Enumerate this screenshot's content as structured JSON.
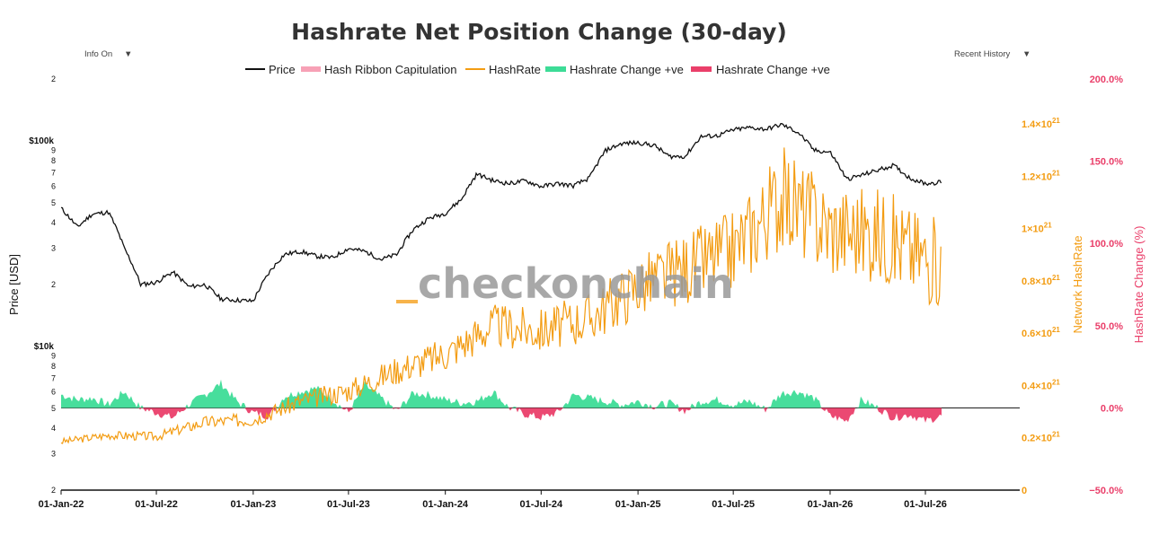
{
  "chart_data": {
    "type": "line",
    "title": "Hashrate Net Position Change (30-day)",
    "controls": {
      "left": "Info On",
      "right": "Recent History"
    },
    "watermark": "checkonchain",
    "legend": [
      "Price",
      "Hash Ribbon Capitulation",
      "HashRate",
      "Hashrate Change +ve",
      "Hashrate Change +ve"
    ],
    "colors": {
      "price": "#111111",
      "capitulation": "#f7a1b6",
      "hashrate": "#f39c12",
      "positive": "#3ddc97",
      "negative": "#ea3f6a"
    },
    "x_ticks": [
      "01-Jan-22",
      "01-Jul-22",
      "01-Jan-23",
      "01-Jul-23",
      "01-Jan-24",
      "01-Jul-24",
      "01-Jan-25",
      "01-Jul-25",
      "01-Jan-26",
      "01-Jul-26"
    ],
    "y_left": {
      "label": "Price [USD]",
      "scale": "log",
      "range": [
        2000,
        200000
      ],
      "ticks": [
        {
          "v": 2000,
          "t": "2"
        },
        {
          "v": 3000,
          "t": "3"
        },
        {
          "v": 4000,
          "t": "4"
        },
        {
          "v": 5000,
          "t": "5"
        },
        {
          "v": 6000,
          "t": "6"
        },
        {
          "v": 7000,
          "t": "7"
        },
        {
          "v": 8000,
          "t": "8"
        },
        {
          "v": 9000,
          "t": "9"
        },
        {
          "v": 10000,
          "t": "$10k"
        },
        {
          "v": 20000,
          "t": "2"
        },
        {
          "v": 30000,
          "t": "3"
        },
        {
          "v": 40000,
          "t": "4"
        },
        {
          "v": 50000,
          "t": "5"
        },
        {
          "v": 60000,
          "t": "6"
        },
        {
          "v": 70000,
          "t": "7"
        },
        {
          "v": 80000,
          "t": "8"
        },
        {
          "v": 90000,
          "t": "9"
        },
        {
          "v": 100000,
          "t": "$100k"
        },
        {
          "v": 200000,
          "t": "2"
        }
      ]
    },
    "y_hashrate": {
      "label": "Network HashRate",
      "range": [
        0,
        1.4e+21
      ],
      "ticks": [
        {
          "v": 0,
          "base": "0",
          "exp": ""
        },
        {
          "v": 2e+20,
          "base": "0.2×10",
          "exp": "21"
        },
        {
          "v": 4e+20,
          "base": "0.4×10",
          "exp": "21"
        },
        {
          "v": 6e+20,
          "base": "0.6×10",
          "exp": "21"
        },
        {
          "v": 8e+20,
          "base": "0.8×10",
          "exp": "21"
        },
        {
          "v": 1e+21,
          "base": "1×10",
          "exp": "21"
        },
        {
          "v": 1.2e+21,
          "base": "1.2×10",
          "exp": "21"
        },
        {
          "v": 1.4e+21,
          "base": "1.4×10",
          "exp": "21"
        }
      ]
    },
    "y_change": {
      "label": "HashRate Change (%)",
      "range": [
        -50,
        200
      ],
      "ticks": [
        "−50.0%",
        "0.0%",
        "50.0%",
        "100.0%",
        "150.0%",
        "200.0%"
      ],
      "tick_values": [
        -50,
        0,
        50,
        100,
        150,
        200
      ]
    },
    "price_series": {
      "x": [
        "2022-01-01",
        "2022-02-01",
        "2022-03-01",
        "2022-04-01",
        "2022-05-01",
        "2022-06-01",
        "2022-07-01",
        "2022-08-01",
        "2022-09-01",
        "2022-10-01",
        "2022-11-01",
        "2022-12-01",
        "2023-01-01",
        "2023-02-01",
        "2023-03-01",
        "2023-04-01",
        "2023-05-01",
        "2023-06-01",
        "2023-07-01",
        "2023-08-01",
        "2023-09-01",
        "2023-10-01",
        "2023-11-01",
        "2023-12-01",
        "2024-01-01",
        "2024-02-01",
        "2024-03-01",
        "2024-04-01",
        "2024-05-01",
        "2024-06-01",
        "2024-07-01",
        "2024-08-01",
        "2024-09-01",
        "2024-10-01",
        "2024-11-01",
        "2024-12-01",
        "2025-01-01",
        "2025-02-01",
        "2025-03-01",
        "2025-04-01",
        "2025-05-01",
        "2025-06-01",
        "2025-07-01",
        "2025-08-01",
        "2025-09-01",
        "2025-10-01",
        "2025-11-01",
        "2025-12-01",
        "2026-01-01",
        "2026-02-01",
        "2026-03-01",
        "2026-04-01",
        "2026-05-01",
        "2026-06-01",
        "2026-07-01",
        "2026-08-01"
      ],
      "y": [
        47000,
        38000,
        44000,
        45000,
        30000,
        20000,
        20500,
        23000,
        19500,
        20000,
        17000,
        16800,
        16600,
        23000,
        28000,
        29000,
        27500,
        27000,
        30000,
        29000,
        26500,
        28000,
        37000,
        42000,
        44500,
        52000,
        69000,
        64000,
        62000,
        64000,
        60000,
        62000,
        60500,
        66000,
        90000,
        97000,
        98000,
        95000,
        84000,
        84000,
        105000,
        106000,
        113000,
        116000,
        114000,
        120000,
        110000,
        90000,
        88000,
        65000,
        68000,
        72000,
        76000,
        66000,
        62000,
        63000
      ]
    },
    "hashrate_series": {
      "x": [
        "2022-01-01",
        "2022-04-01",
        "2022-07-01",
        "2022-10-01",
        "2023-01-01",
        "2023-04-01",
        "2023-07-01",
        "2023-10-01",
        "2024-01-01",
        "2024-04-01",
        "2024-07-01",
        "2024-10-01",
        "2025-01-01",
        "2025-04-01",
        "2025-07-01",
        "2025-10-01",
        "2026-01-01",
        "2026-04-01",
        "2026-08-01"
      ],
      "y": [
        1.85e+20,
        2.1e+20,
        2.05e+20,
        2.6e+20,
        2.7e+20,
        3.4e+20,
        3.8e+20,
        4.6e+20,
        5.2e+20,
        6.3e+20,
        6.1e+20,
        6.6e+20,
        7.8e+20,
        8.5e+20,
        9.2e+20,
        1.12e+21,
        1e+21,
        9.8e+20,
        8.6e+20
      ]
    },
    "change_series": {
      "x": [
        "2022-01-01",
        "2022-02-01",
        "2022-03-01",
        "2022-04-01",
        "2022-05-01",
        "2022-06-01",
        "2022-07-01",
        "2022-08-01",
        "2022-09-01",
        "2022-10-01",
        "2022-11-01",
        "2022-12-01",
        "2023-01-01",
        "2023-02-01",
        "2023-03-01",
        "2023-04-01",
        "2023-05-01",
        "2023-06-01",
        "2023-07-01",
        "2023-08-01",
        "2023-09-01",
        "2023-10-01",
        "2023-11-01",
        "2023-12-01",
        "2024-01-01",
        "2024-02-01",
        "2024-03-01",
        "2024-04-01",
        "2024-05-01",
        "2024-06-01",
        "2024-07-01",
        "2024-08-01",
        "2024-09-01",
        "2024-10-01",
        "2024-11-01",
        "2024-12-01",
        "2025-01-01",
        "2025-02-01",
        "2025-03-01",
        "2025-04-01",
        "2025-05-01",
        "2025-06-01",
        "2025-07-01",
        "2025-08-01",
        "2025-09-01",
        "2025-10-01",
        "2025-11-01",
        "2025-12-01",
        "2026-01-01",
        "2026-02-01",
        "2026-03-01",
        "2026-04-01",
        "2026-05-01",
        "2026-06-01",
        "2026-07-01",
        "2026-08-01"
      ],
      "y": [
        8,
        5,
        6,
        2,
        10,
        0,
        -3,
        -6,
        2,
        8,
        15,
        4,
        -3,
        -5,
        7,
        10,
        12,
        5,
        -3,
        14,
        6,
        -2,
        9,
        8,
        5,
        3,
        4,
        10,
        0,
        -4,
        -6,
        -3,
        8,
        6,
        4,
        2,
        4,
        1,
        3,
        -2,
        4,
        5,
        2,
        4,
        -1,
        9,
        10,
        6,
        -5,
        -8,
        5,
        0,
        -6,
        -4,
        -8,
        -5
      ]
    }
  }
}
